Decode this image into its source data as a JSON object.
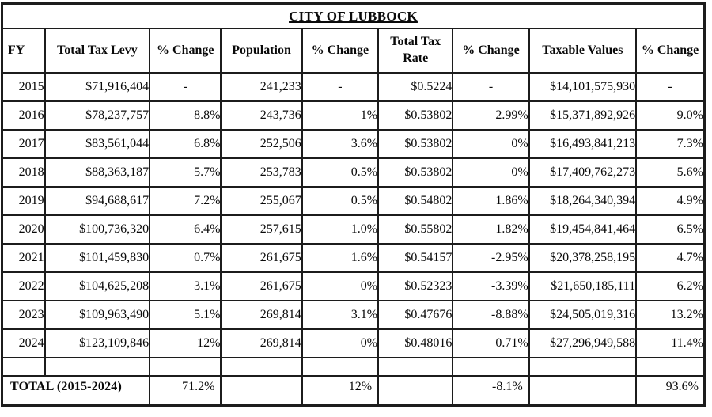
{
  "title": "CITY OF LUBBOCK",
  "chart_data": {
    "type": "table",
    "title": "CITY OF LUBBOCK",
    "columns": [
      "FY",
      "Total Tax Levy",
      "% Change",
      "Population",
      "% Change",
      "Total Tax Rate",
      "% Change",
      "Taxable Values",
      "% Change"
    ],
    "rows": [
      [
        "2015",
        "$71,916,404",
        "-",
        "241,233",
        "-",
        "$0.5224",
        "-",
        "$14,101,575,930",
        "-"
      ],
      [
        "2016",
        "$78,237,757",
        "8.8%",
        "243,736",
        "1%",
        "$0.53802",
        "2.99%",
        "$15,371,892,926",
        "9.0%"
      ],
      [
        "2017",
        "$83,561,044",
        "6.8%",
        "252,506",
        "3.6%",
        "$0.53802",
        "0%",
        "$16,493,841,213",
        "7.3%"
      ],
      [
        "2018",
        "$88,363,187",
        "5.7%",
        "253,783",
        "0.5%",
        "$0.53802",
        "0%",
        "$17,409,762,273",
        "5.6%"
      ],
      [
        "2019",
        "$94,688,617",
        "7.2%",
        "255,067",
        "0.5%",
        "$0.54802",
        "1.86%",
        "$18,264,340,394",
        "4.9%"
      ],
      [
        "2020",
        "$100,736,320",
        "6.4%",
        "257,615",
        "1.0%",
        "$0.55802",
        "1.82%",
        "$19,454,841,464",
        "6.5%"
      ],
      [
        "2021",
        "$101,459,830",
        "0.7%",
        "261,675",
        "1.6%",
        "$0.54157",
        "-2.95%",
        "$20,378,258,195",
        "4.7%"
      ],
      [
        "2022",
        "$104,625,208",
        "3.1%",
        "261,675",
        "0%",
        "$0.52323",
        "-3.39%",
        "$21,650,185,111",
        "6.2%"
      ],
      [
        "2023",
        "$109,963,490",
        "5.1%",
        "269,814",
        "3.1%",
        "$0.47676",
        "-8.88%",
        "$24,505,019,316",
        "13.2%"
      ],
      [
        "2024",
        "$123,109,846",
        "12%",
        "269,814",
        "0%",
        "$0.48016",
        "0.71%",
        "$27,296,949,588",
        "11.4%"
      ]
    ],
    "total_row": {
      "label": "TOTAL (2015-2024)",
      "values": [
        "71.2%",
        "",
        "12%",
        "",
        "-8.1%",
        "",
        "93.6%"
      ]
    },
    "colors": {
      "border": "#1c1c1c",
      "text": "#0a0a0a",
      "background": "#ffffff"
    }
  }
}
